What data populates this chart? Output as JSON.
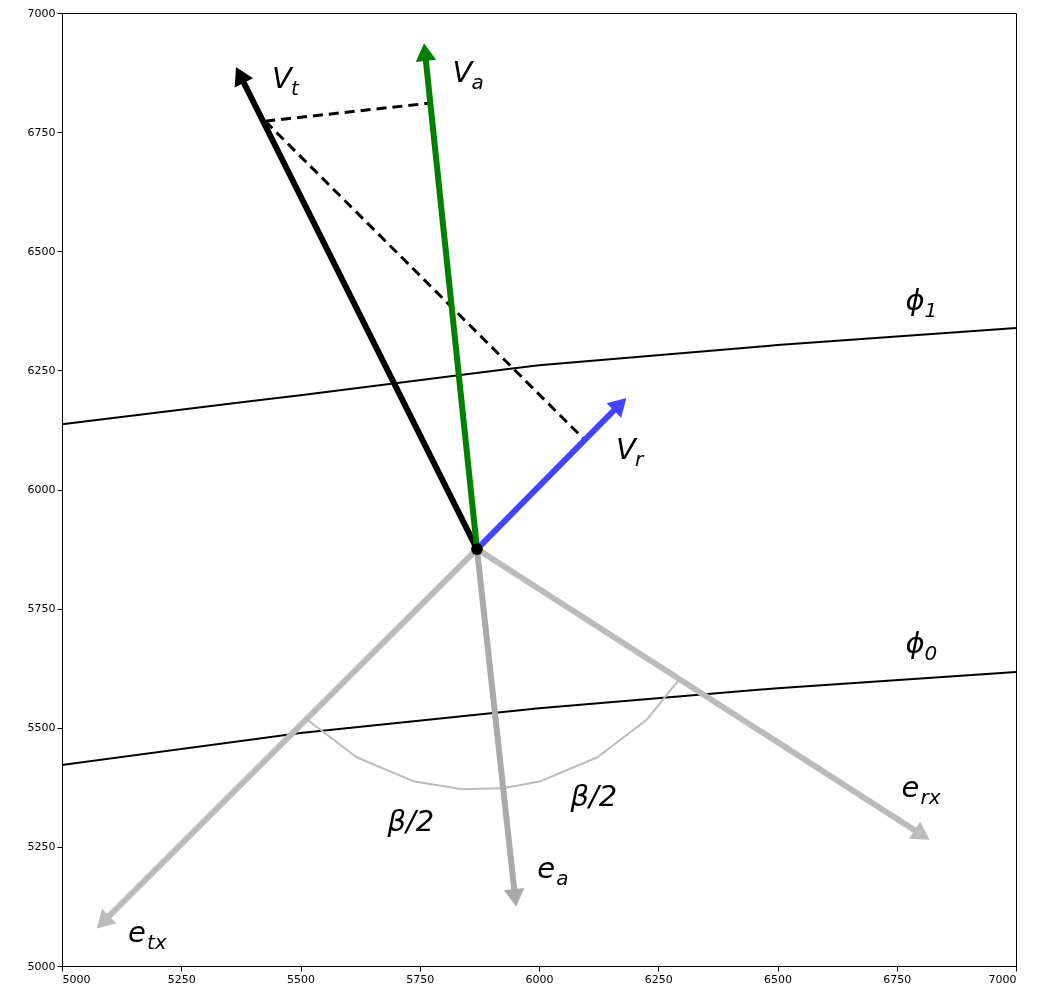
{
  "chart_data": {
    "type": "line",
    "xlim": [
      5000,
      7000
    ],
    "ylim": [
      5000,
      7000
    ],
    "xticks": [
      5000,
      5250,
      5500,
      5750,
      6000,
      6250,
      6500,
      6750,
      7000
    ],
    "yticks": [
      5000,
      5250,
      5500,
      5750,
      6000,
      6250,
      6500,
      6750,
      7000
    ],
    "grid": false,
    "series": [
      {
        "name": "ϕ$_{1}$",
        "color": "#000000",
        "x": [
          5000,
          5500,
          6000,
          6500,
          7000
        ],
        "values": [
          6137,
          6198,
          6261,
          6303,
          6339
        ]
      },
      {
        "name": "ϕ$_{0}$",
        "color": "#000000",
        "x": [
          5000,
          5500,
          6000,
          6500,
          7000
        ],
        "values": [
          5422,
          5489,
          5541,
          5583,
          5617
        ]
      },
      {
        "name": "β/2",
        "color": "#bbbbbb",
        "x": [
          5513,
          5617.5,
          5739,
          5840,
          5919
        ],
        "values": [
          5518,
          5438,
          5387,
          5371,
          5373
        ]
      },
      {
        "name": "β/2",
        "color": "#bbbbbb",
        "x": [
          5928,
          6001,
          6122.5,
          6227,
          6296
        ],
        "values": [
          5374,
          5387,
          5438,
          5518,
          5604
        ]
      },
      {
        "name": "e$_{tx}$",
        "color": "#bbbbbb",
        "marker": "triangle",
        "x": [
          5870,
          5086
        ],
        "values": [
          5875,
          5092
        ]
      },
      {
        "name": "e$_{a}$",
        "color": "#aaaaaa",
        "marker": "triangle",
        "x": [
          5870,
          5950
        ],
        "values": [
          5875,
          5143
        ]
      },
      {
        "name": "e$_{rx}$",
        "color": "#bbbbbb",
        "marker": "triangle",
        "x": [
          5870,
          6803
        ],
        "values": [
          5875,
          5275
        ]
      },
      {
        "color": "#000000",
        "line_style": "dashed",
        "x": [
          5426,
          5772
        ],
        "values": [
          6773,
          6811
        ]
      },
      {
        "color": "#000000",
        "line_style": "dashed",
        "x": [
          5426,
          6096
        ],
        "values": [
          6773,
          6104
        ]
      },
      {
        "name": "V$_{t}$",
        "color": "#000000",
        "marker": "triangle",
        "x": [
          5870,
          5373
        ],
        "values": [
          5875,
          6870
        ]
      },
      {
        "name": "V$_{a}$",
        "color": "#008000",
        "marker": "triangle",
        "x": [
          5870,
          5761
        ],
        "values": [
          5875,
          6918
        ]
      },
      {
        "name": "V$_{r}$",
        "color": "#4444ff",
        "marker": "triangle",
        "x": [
          5870,
          6170
        ],
        "values": [
          5875,
          6179
        ]
      },
      {
        "type": "scatter",
        "color": "#000000",
        "marker": "circle",
        "x": [
          5870
        ],
        "values": [
          5875
        ]
      }
    ]
  }
}
